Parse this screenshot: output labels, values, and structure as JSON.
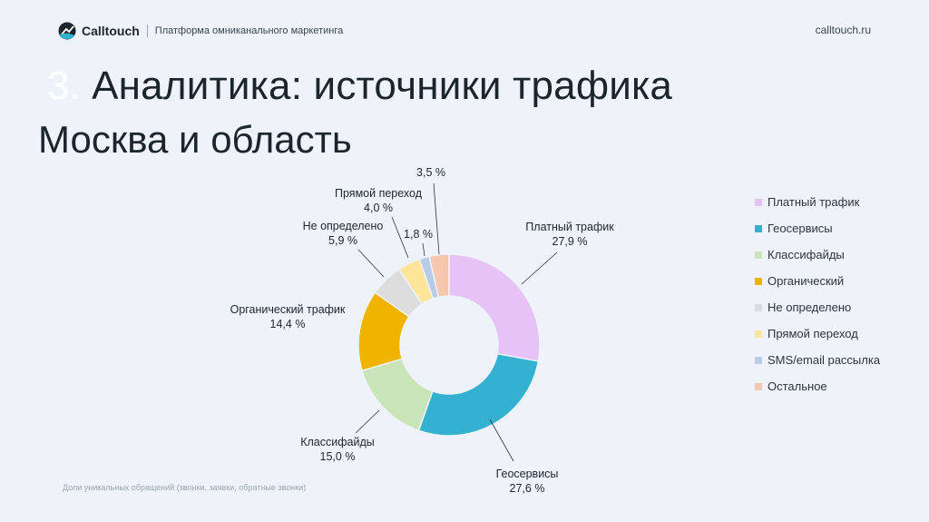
{
  "header": {
    "brand": "Calltouch",
    "tagline": "Платформа омниканального маркетинга",
    "site": "calltouch.ru",
    "logo_icon": "calltouch-logo-icon"
  },
  "slide": {
    "title_number": "3.",
    "title": "Аналитика: источники трафика",
    "subtitle": "Москва и область",
    "footnote": "Доли уникальных обращений (звонки, заявки, обратные звонки)"
  },
  "chart_data": {
    "type": "pie",
    "donut": true,
    "legend_position": "right",
    "categories": [
      "Платный трафик",
      "Геосервисы",
      "Классифайды",
      "Органический",
      "Не определено",
      "Прямой переход",
      "SMS/email рассылка",
      "Остальное"
    ],
    "slice_labels": [
      "Платный трафик",
      "Геосервисы",
      "Классифайды",
      "Органический трафик",
      "Не определено",
      "Прямой переход",
      "",
      ""
    ],
    "value_labels": [
      "27,9 %",
      "27,6 %",
      "15,0 %",
      "14,4 %",
      "5,9 %",
      "4,0 %",
      "1,8 %",
      "3,5 %"
    ],
    "values": [
      27.9,
      27.6,
      15.0,
      14.4,
      5.9,
      4.0,
      1.8,
      3.5
    ],
    "colors": [
      "#e6c2f7",
      "#34b0d0",
      "#c9e4b6",
      "#f0b400",
      "#dcdcdc",
      "#ffe59a",
      "#b8cce8",
      "#f7c6ae"
    ]
  }
}
